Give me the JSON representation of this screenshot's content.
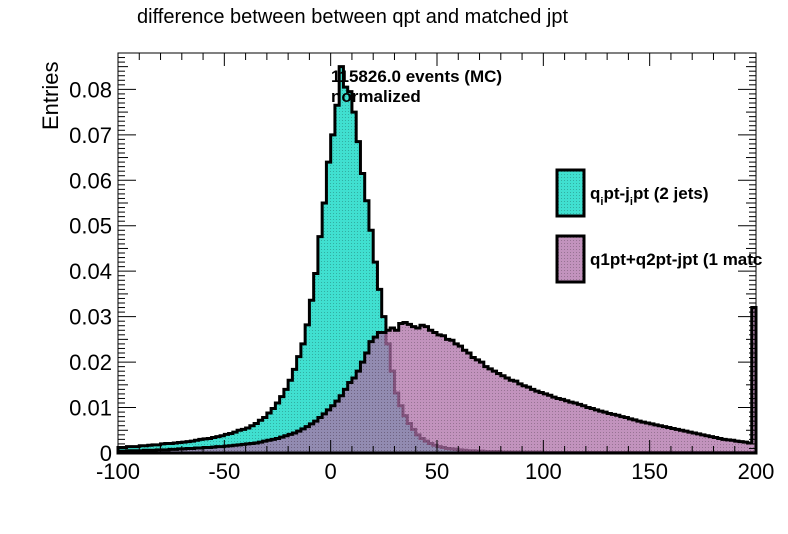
{
  "chart_data": {
    "type": "histogram",
    "title": "difference between between qpt and matched jpt",
    "ylabel": "Entries",
    "xlabel": "",
    "xlim": [
      -100,
      200
    ],
    "ylim": [
      0,
      0.088
    ],
    "x_ticks": [
      "-100",
      "-50",
      "0",
      "50",
      "100",
      "150",
      "200"
    ],
    "y_ticks": [
      "0",
      "0.01",
      "0.02",
      "0.03",
      "0.04",
      "0.05",
      "0.06",
      "0.07",
      "0.08"
    ],
    "bin_width": 2,
    "annotation": [
      "115826.0 events (MC)",
      "normalized"
    ],
    "legend_position": "right",
    "series": [
      {
        "name": "qipt-jipt (2 jets)",
        "label_parts": [
          "q",
          "i",
          "pt-j",
          "i",
          "pt (2 jets)"
        ],
        "color": "#40E0D0",
        "values": [
          0.0012,
          0.0012,
          0.0014,
          0.0014,
          0.0014,
          0.0016,
          0.0016,
          0.0017,
          0.0018,
          0.0018,
          0.002,
          0.0021,
          0.0021,
          0.0022,
          0.0023,
          0.0024,
          0.0025,
          0.0026,
          0.0028,
          0.003,
          0.0031,
          0.0032,
          0.0034,
          0.0036,
          0.0038,
          0.0041,
          0.0043,
          0.0046,
          0.005,
          0.0052,
          0.0055,
          0.006,
          0.0065,
          0.0072,
          0.0078,
          0.0088,
          0.0098,
          0.011,
          0.0124,
          0.014,
          0.016,
          0.0184,
          0.0212,
          0.024,
          0.0282,
          0.0336,
          0.0395,
          0.0476,
          0.055,
          0.064,
          0.07,
          0.0765,
          0.085,
          0.0805,
          0.0795,
          0.075,
          0.0685,
          0.0615,
          0.0555,
          0.049,
          0.042,
          0.036,
          0.03,
          0.024,
          0.018,
          0.0132,
          0.0104,
          0.0082,
          0.0065,
          0.0052,
          0.004,
          0.0032,
          0.0026,
          0.0021,
          0.0017,
          0.0014,
          0.0012,
          0.001,
          0.0009,
          0.0008,
          0.0007,
          0.0006,
          0.0005,
          0.0005,
          0.0004,
          0.0004,
          0.0003,
          0.0003,
          0.0003,
          0.0003,
          0.0002,
          0.0002,
          0.0002,
          0.0002,
          0.0002,
          0.0002,
          0.0002,
          0.0002,
          0.0002,
          0.0002,
          0.0001,
          0.0001,
          0.0001,
          0.0001,
          0.0001,
          0.0001,
          0.0001,
          0.0001,
          0.0001,
          0.0001,
          0.0001,
          0.0001,
          0.0001,
          0.0001,
          0.0001,
          0.0001,
          0.0001,
          0.0001,
          0.0001,
          0.0001,
          0.0001,
          0.0001,
          0.0001,
          0.0001,
          0.0001,
          0.0001,
          0.0001,
          0.0001,
          0.0001,
          0.0001,
          0.0001,
          0.0001,
          0.0001,
          0.0001,
          0.0001,
          0.0001,
          0.0001,
          0.0001,
          0.0001,
          0.0001,
          0.0001,
          0.0001,
          0.0001,
          0.0001,
          0.0001,
          0.0001,
          0.0001,
          0.0001,
          0.0001,
          0.0001
        ]
      },
      {
        "name": "q1pt+q2pt-jpt (1 matc",
        "label_parts": [
          "q1pt+q2pt-jpt (1 matc"
        ],
        "color": "#AE6FA7",
        "values": [
          0.0004,
          0.0004,
          0.0005,
          0.0005,
          0.0005,
          0.0005,
          0.0006,
          0.0006,
          0.0006,
          0.0007,
          0.0007,
          0.0007,
          0.0008,
          0.0008,
          0.0009,
          0.0009,
          0.001,
          0.001,
          0.0011,
          0.0011,
          0.0012,
          0.0012,
          0.0013,
          0.0014,
          0.0014,
          0.0015,
          0.0016,
          0.0017,
          0.0018,
          0.0019,
          0.002,
          0.0021,
          0.0022,
          0.0024,
          0.0026,
          0.0028,
          0.003,
          0.0032,
          0.0035,
          0.0038,
          0.0041,
          0.0044,
          0.0048,
          0.0053,
          0.0058,
          0.0064,
          0.007,
          0.0078,
          0.0086,
          0.0095,
          0.0104,
          0.0114,
          0.0126,
          0.014,
          0.0155,
          0.0165,
          0.018,
          0.02,
          0.022,
          0.0245,
          0.0255,
          0.0265,
          0.0265,
          0.027,
          0.0275,
          0.027,
          0.0285,
          0.0287,
          0.0283,
          0.0278,
          0.0275,
          0.0281,
          0.0278,
          0.027,
          0.0265,
          0.026,
          0.0258,
          0.025,
          0.0248,
          0.024,
          0.0235,
          0.0226,
          0.022,
          0.021,
          0.0205,
          0.02,
          0.019,
          0.0185,
          0.018,
          0.0175,
          0.017,
          0.0165,
          0.016,
          0.0158,
          0.0152,
          0.0148,
          0.0145,
          0.014,
          0.0136,
          0.0133,
          0.013,
          0.0127,
          0.0123,
          0.012,
          0.0118,
          0.0115,
          0.0112,
          0.011,
          0.0107,
          0.0104,
          0.01,
          0.0098,
          0.0095,
          0.0092,
          0.009,
          0.0087,
          0.0085,
          0.0083,
          0.008,
          0.0078,
          0.0075,
          0.0073,
          0.007,
          0.0068,
          0.0066,
          0.0064,
          0.0062,
          0.006,
          0.0058,
          0.0056,
          0.0054,
          0.0052,
          0.005,
          0.0048,
          0.0046,
          0.0044,
          0.0042,
          0.004,
          0.0038,
          0.0036,
          0.0034,
          0.0032,
          0.003,
          0.0029,
          0.0028,
          0.0026,
          0.0025,
          0.0024,
          0.0022,
          0.032
        ]
      }
    ]
  }
}
